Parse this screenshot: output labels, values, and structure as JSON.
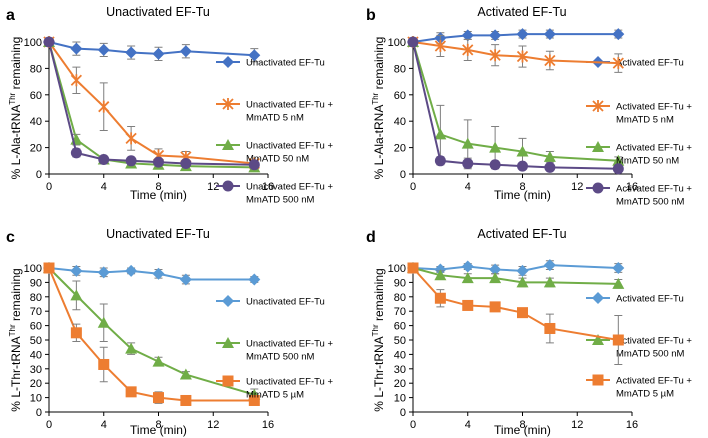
{
  "chart_data": [
    {
      "panel": "a",
      "type": "line",
      "title": "Unactivated EF-Tu",
      "xlabel": "Time (min)",
      "ylabel": [
        "% L-Ala-tRNA",
        "Thr",
        " remaining"
      ],
      "xlim": [
        0,
        16
      ],
      "ylim": [
        0,
        100
      ],
      "xticks": [
        0,
        4,
        8,
        12,
        16
      ],
      "xtick_labels": [
        "0",
        "4",
        "8",
        "12",
        "16"
      ],
      "yticks": [
        0,
        20,
        40,
        60,
        80,
        100
      ],
      "ytick_labels": [
        "0",
        "20",
        "40",
        "60",
        "80",
        "100"
      ],
      "series": [
        {
          "name": [
            "Unactivated EF-Tu"
          ],
          "color": "#4472c4",
          "marker": "diamond",
          "x": [
            0,
            2,
            4,
            6,
            8,
            10,
            15
          ],
          "y": [
            100,
            95,
            94,
            92,
            91,
            93,
            90
          ],
          "err": [
            0,
            5,
            5,
            5,
            5,
            5,
            5
          ]
        },
        {
          "name": [
            "Unactivated EF-Tu +",
            "MmATD 5 nM"
          ],
          "color": "#ed7d31",
          "marker": "x",
          "x": [
            0,
            2,
            4,
            6,
            8,
            10,
            15
          ],
          "y": [
            100,
            71,
            51,
            27,
            14,
            13,
            8
          ],
          "err": [
            0,
            10,
            18,
            9,
            5,
            4,
            2
          ]
        },
        {
          "name": [
            "Unactivated EF-Tu +",
            "MmATD 50 nM"
          ],
          "color": "#70ad47",
          "marker": "triangle",
          "x": [
            0,
            2,
            4,
            6,
            8,
            10,
            15
          ],
          "y": [
            100,
            26,
            11,
            8,
            7,
            6,
            5
          ],
          "err": [
            0,
            4,
            2,
            2,
            2,
            2,
            2
          ]
        },
        {
          "name": [
            "Unactivated EF-Tu +",
            "MmATD 500 nM"
          ],
          "color": "#5c4a86",
          "marker": "circle",
          "x": [
            0,
            2,
            4,
            6,
            8,
            10,
            15
          ],
          "y": [
            100,
            16,
            11,
            10,
            9,
            8,
            7
          ],
          "err": [
            0,
            3,
            2,
            2,
            2,
            2,
            2
          ]
        }
      ]
    },
    {
      "panel": "b",
      "type": "line",
      "title": "Activated EF-Tu",
      "xlabel": "Time (min)",
      "ylabel": [
        "% L-Ala-tRNA",
        "Thr",
        " remaining"
      ],
      "xlim": [
        0,
        16
      ],
      "ylim": [
        0,
        100
      ],
      "xticks": [
        0,
        4,
        8,
        12,
        16
      ],
      "xtick_labels": [
        "0",
        "4",
        "8",
        "12",
        "16"
      ],
      "yticks": [
        0,
        20,
        40,
        60,
        80,
        100
      ],
      "ytick_labels": [
        "0",
        "20",
        "40",
        "60",
        "80",
        "100"
      ],
      "series": [
        {
          "name": [
            "Activated EF-Tu"
          ],
          "color": "#4472c4",
          "marker": "diamond",
          "x": [
            0,
            2,
            4,
            6,
            8,
            10,
            15
          ],
          "y": [
            100,
            103,
            105,
            105,
            106,
            106,
            106
          ],
          "err": [
            0,
            4,
            3,
            3,
            3,
            3,
            3
          ]
        },
        {
          "name": [
            "Activated EF-Tu +",
            "MmATD 5 nM"
          ],
          "color": "#ed7d31",
          "marker": "x",
          "x": [
            0,
            2,
            4,
            6,
            8,
            10,
            15
          ],
          "y": [
            100,
            97,
            94,
            90,
            89,
            86,
            84
          ],
          "err": [
            0,
            8,
            8,
            8,
            8,
            7,
            7
          ]
        },
        {
          "name": [
            "Activated EF-Tu +",
            "MmATD 50 nM"
          ],
          "color": "#70ad47",
          "marker": "triangle",
          "x": [
            0,
            2,
            4,
            6,
            8,
            10,
            15
          ],
          "y": [
            100,
            30,
            23,
            20,
            17,
            13,
            10
          ],
          "err": [
            0,
            22,
            18,
            16,
            10,
            4,
            3
          ]
        },
        {
          "name": [
            "Activated EF-Tu +",
            "MmATD 500 nM"
          ],
          "color": "#5c4a86",
          "marker": "circle",
          "x": [
            0,
            2,
            4,
            6,
            8,
            10,
            15
          ],
          "y": [
            100,
            10,
            8,
            7,
            6,
            5,
            4
          ],
          "err": [
            0,
            3,
            4,
            2,
            2,
            2,
            2
          ]
        }
      ]
    },
    {
      "panel": "c",
      "type": "line",
      "title": "Unactivated EF-Tu",
      "xlabel": "Time (min)",
      "ylabel": [
        "% L-Thr-tRNA",
        "Thr",
        " remaining"
      ],
      "xlim": [
        0,
        16
      ],
      "ylim": [
        0,
        100
      ],
      "xticks": [
        0,
        4,
        8,
        12,
        16
      ],
      "xtick_labels": [
        "0",
        "4",
        "8",
        "12",
        "16"
      ],
      "yticks": [
        0,
        10,
        20,
        30,
        40,
        50,
        60,
        70,
        80,
        90,
        100
      ],
      "ytick_labels": [
        "0",
        "10",
        "20",
        "30",
        "40",
        "50",
        "60",
        "70",
        "80",
        "90",
        "100"
      ],
      "series": [
        {
          "name": [
            "Unactivated EF-Tu"
          ],
          "color": "#5b9bd5",
          "marker": "diamond",
          "x": [
            0,
            2,
            4,
            6,
            8,
            10,
            15
          ],
          "y": [
            100,
            98,
            97,
            98,
            96,
            92,
            92
          ],
          "err": [
            0,
            3,
            3,
            2,
            3,
            3,
            2
          ]
        },
        {
          "name": [
            "Unactivated EF-Tu +",
            "MmATD 500 nM"
          ],
          "color": "#70ad47",
          "marker": "triangle",
          "x": [
            0,
            2,
            4,
            6,
            8,
            10,
            15
          ],
          "y": [
            100,
            81,
            62,
            44,
            35,
            26,
            12
          ],
          "err": [
            0,
            10,
            13,
            4,
            3,
            2,
            4
          ]
        },
        {
          "name": [
            "Unactivated EF-Tu +",
            "MmATD 5 µM"
          ],
          "color": "#ed7d31",
          "marker": "square",
          "x": [
            0,
            2,
            4,
            6,
            8,
            10,
            15
          ],
          "y": [
            100,
            55,
            33,
            14,
            10,
            8,
            8
          ],
          "err": [
            0,
            6,
            12,
            2,
            4,
            2,
            2
          ]
        }
      ]
    },
    {
      "panel": "d",
      "type": "line",
      "title": "Activated EF-Tu",
      "xlabel": "Time (min)",
      "ylabel": [
        "% L-Thr-tRNA",
        "Thr",
        " remaining"
      ],
      "xlim": [
        0,
        16
      ],
      "ylim": [
        0,
        100
      ],
      "xticks": [
        0,
        4,
        8,
        12,
        16
      ],
      "xtick_labels": [
        "0",
        "4",
        "8",
        "12",
        "16"
      ],
      "yticks": [
        0,
        10,
        20,
        30,
        40,
        50,
        60,
        70,
        80,
        90,
        100
      ],
      "ytick_labels": [
        "0",
        "10",
        "20",
        "30",
        "40",
        "50",
        "60",
        "70",
        "80",
        "90",
        "100"
      ],
      "series": [
        {
          "name": [
            "Activated EF-Tu"
          ],
          "color": "#5b9bd5",
          "marker": "diamond",
          "x": [
            0,
            2,
            4,
            6,
            8,
            10,
            15
          ],
          "y": [
            100,
            99,
            101,
            99,
            98,
            102,
            100
          ],
          "err": [
            0,
            2,
            2,
            3,
            3,
            3,
            3
          ]
        },
        {
          "name": [
            "Activated EF-Tu +",
            "MmATD 500 nM"
          ],
          "color": "#70ad47",
          "marker": "triangle",
          "x": [
            0,
            2,
            4,
            6,
            8,
            10,
            15
          ],
          "y": [
            100,
            95,
            93,
            93,
            90,
            90,
            89
          ],
          "err": [
            0,
            3,
            3,
            3,
            3,
            3,
            3
          ]
        },
        {
          "name": [
            "Activated EF-Tu +",
            "MmATD 5 µM"
          ],
          "color": "#ed7d31",
          "marker": "square",
          "x": [
            0,
            2,
            4,
            6,
            8,
            10,
            15
          ],
          "y": [
            100,
            79,
            74,
            73,
            69,
            58,
            50
          ],
          "err": [
            0,
            6,
            3,
            3,
            3,
            10,
            17
          ]
        }
      ]
    }
  ]
}
